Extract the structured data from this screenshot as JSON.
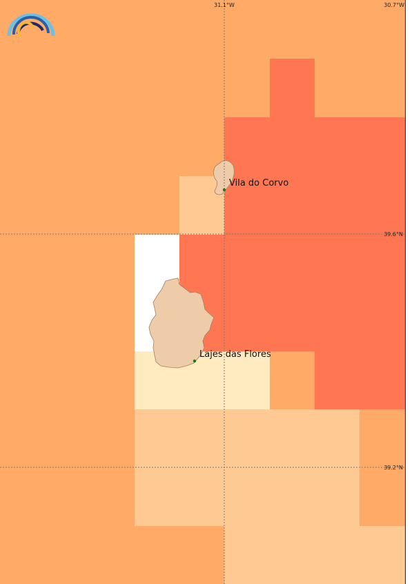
{
  "map": {
    "legend_colors": {
      "white": "#ffffff",
      "lightest": "#ffebbf",
      "light": "#ffc994",
      "medium": "#ffaa66",
      "high": "#ff7752"
    },
    "cells": [
      {
        "col": 0,
        "row": 0,
        "level": "medium"
      },
      {
        "col": 1,
        "row": 0,
        "level": "medium"
      },
      {
        "col": 2,
        "row": 0,
        "level": "medium"
      },
      {
        "col": 3,
        "row": 0,
        "level": "medium"
      },
      {
        "col": 4,
        "row": 0,
        "level": "medium"
      },
      {
        "col": 5,
        "row": 0,
        "level": "medium"
      },
      {
        "col": 6,
        "row": 0,
        "level": "medium"
      },
      {
        "col": 7,
        "row": 0,
        "level": "medium"
      },
      {
        "col": 8,
        "row": 0,
        "level": "medium"
      },
      {
        "col": 0,
        "row": 1,
        "level": "medium"
      },
      {
        "col": 1,
        "row": 1,
        "level": "medium"
      },
      {
        "col": 2,
        "row": 1,
        "level": "medium"
      },
      {
        "col": 3,
        "row": 1,
        "level": "medium"
      },
      {
        "col": 4,
        "row": 1,
        "level": "medium"
      },
      {
        "col": 5,
        "row": 1,
        "level": "medium"
      },
      {
        "col": 6,
        "row": 1,
        "level": "high"
      },
      {
        "col": 7,
        "row": 1,
        "level": "medium"
      },
      {
        "col": 8,
        "row": 1,
        "level": "medium"
      },
      {
        "col": 0,
        "row": 2,
        "level": "medium"
      },
      {
        "col": 1,
        "row": 2,
        "level": "medium"
      },
      {
        "col": 2,
        "row": 2,
        "level": "medium"
      },
      {
        "col": 3,
        "row": 2,
        "level": "medium"
      },
      {
        "col": 4,
        "row": 2,
        "level": "medium"
      },
      {
        "col": 5,
        "row": 2,
        "level": "high"
      },
      {
        "col": 6,
        "row": 2,
        "level": "high"
      },
      {
        "col": 7,
        "row": 2,
        "level": "high"
      },
      {
        "col": 8,
        "row": 2,
        "level": "high"
      },
      {
        "col": 0,
        "row": 3,
        "level": "medium"
      },
      {
        "col": 1,
        "row": 3,
        "level": "medium"
      },
      {
        "col": 2,
        "row": 3,
        "level": "medium"
      },
      {
        "col": 3,
        "row": 3,
        "level": "medium"
      },
      {
        "col": 4,
        "row": 3,
        "level": "light"
      },
      {
        "col": 5,
        "row": 3,
        "level": "high"
      },
      {
        "col": 6,
        "row": 3,
        "level": "high"
      },
      {
        "col": 7,
        "row": 3,
        "level": "high"
      },
      {
        "col": 8,
        "row": 3,
        "level": "high"
      },
      {
        "col": 0,
        "row": 4,
        "level": "medium"
      },
      {
        "col": 1,
        "row": 4,
        "level": "medium"
      },
      {
        "col": 2,
        "row": 4,
        "level": "medium"
      },
      {
        "col": 3,
        "row": 4,
        "level": "white"
      },
      {
        "col": 4,
        "row": 4,
        "level": "high"
      },
      {
        "col": 5,
        "row": 4,
        "level": "high"
      },
      {
        "col": 6,
        "row": 4,
        "level": "high"
      },
      {
        "col": 7,
        "row": 4,
        "level": "high"
      },
      {
        "col": 8,
        "row": 4,
        "level": "high"
      },
      {
        "col": 0,
        "row": 5,
        "level": "medium"
      },
      {
        "col": 1,
        "row": 5,
        "level": "medium"
      },
      {
        "col": 2,
        "row": 5,
        "level": "medium"
      },
      {
        "col": 3,
        "row": 5,
        "level": "white"
      },
      {
        "col": 4,
        "row": 5,
        "level": "high"
      },
      {
        "col": 5,
        "row": 5,
        "level": "high"
      },
      {
        "col": 6,
        "row": 5,
        "level": "high"
      },
      {
        "col": 7,
        "row": 5,
        "level": "high"
      },
      {
        "col": 8,
        "row": 5,
        "level": "high"
      },
      {
        "col": 0,
        "row": 6,
        "level": "medium"
      },
      {
        "col": 1,
        "row": 6,
        "level": "medium"
      },
      {
        "col": 2,
        "row": 6,
        "level": "medium"
      },
      {
        "col": 3,
        "row": 6,
        "level": "lightest"
      },
      {
        "col": 4,
        "row": 6,
        "level": "lightest"
      },
      {
        "col": 5,
        "row": 6,
        "level": "lightest"
      },
      {
        "col": 6,
        "row": 6,
        "level": "medium"
      },
      {
        "col": 7,
        "row": 6,
        "level": "high"
      },
      {
        "col": 8,
        "row": 6,
        "level": "high"
      },
      {
        "col": 0,
        "row": 7,
        "level": "medium"
      },
      {
        "col": 1,
        "row": 7,
        "level": "medium"
      },
      {
        "col": 2,
        "row": 7,
        "level": "medium"
      },
      {
        "col": 3,
        "row": 7,
        "level": "light"
      },
      {
        "col": 4,
        "row": 7,
        "level": "light"
      },
      {
        "col": 5,
        "row": 7,
        "level": "light"
      },
      {
        "col": 6,
        "row": 7,
        "level": "light"
      },
      {
        "col": 7,
        "row": 7,
        "level": "light"
      },
      {
        "col": 8,
        "row": 7,
        "level": "medium"
      },
      {
        "col": 0,
        "row": 8,
        "level": "medium"
      },
      {
        "col": 1,
        "row": 8,
        "level": "medium"
      },
      {
        "col": 2,
        "row": 8,
        "level": "medium"
      },
      {
        "col": 3,
        "row": 8,
        "level": "light"
      },
      {
        "col": 4,
        "row": 8,
        "level": "light"
      },
      {
        "col": 5,
        "row": 8,
        "level": "light"
      },
      {
        "col": 6,
        "row": 8,
        "level": "light"
      },
      {
        "col": 7,
        "row": 8,
        "level": "light"
      },
      {
        "col": 8,
        "row": 8,
        "level": "medium"
      },
      {
        "col": 0,
        "row": 9,
        "level": "medium"
      },
      {
        "col": 1,
        "row": 9,
        "level": "medium"
      },
      {
        "col": 2,
        "row": 9,
        "level": "medium"
      },
      {
        "col": 3,
        "row": 9,
        "level": "medium"
      },
      {
        "col": 4,
        "row": 9,
        "level": "medium"
      },
      {
        "col": 5,
        "row": 9,
        "level": "light"
      },
      {
        "col": 6,
        "row": 9,
        "level": "light"
      },
      {
        "col": 7,
        "row": 9,
        "level": "light"
      },
      {
        "col": 8,
        "row": 9,
        "level": "light"
      }
    ],
    "grid_labels": {
      "lon_1": "31.1°W",
      "lon_2": "30.7°W",
      "lat_1": "39.6°N",
      "lat_2": "39.2°N"
    },
    "places": [
      {
        "name": "Vila do Corvo"
      },
      {
        "name": "Lajes das Flores"
      }
    ],
    "islands": [
      {
        "name": "corvo-island"
      },
      {
        "name": "flores-island"
      }
    ],
    "logo": {
      "colors": [
        "#6cc0e6",
        "#2a5fa8",
        "#1c2a6b",
        "#f4b63c"
      ]
    }
  }
}
